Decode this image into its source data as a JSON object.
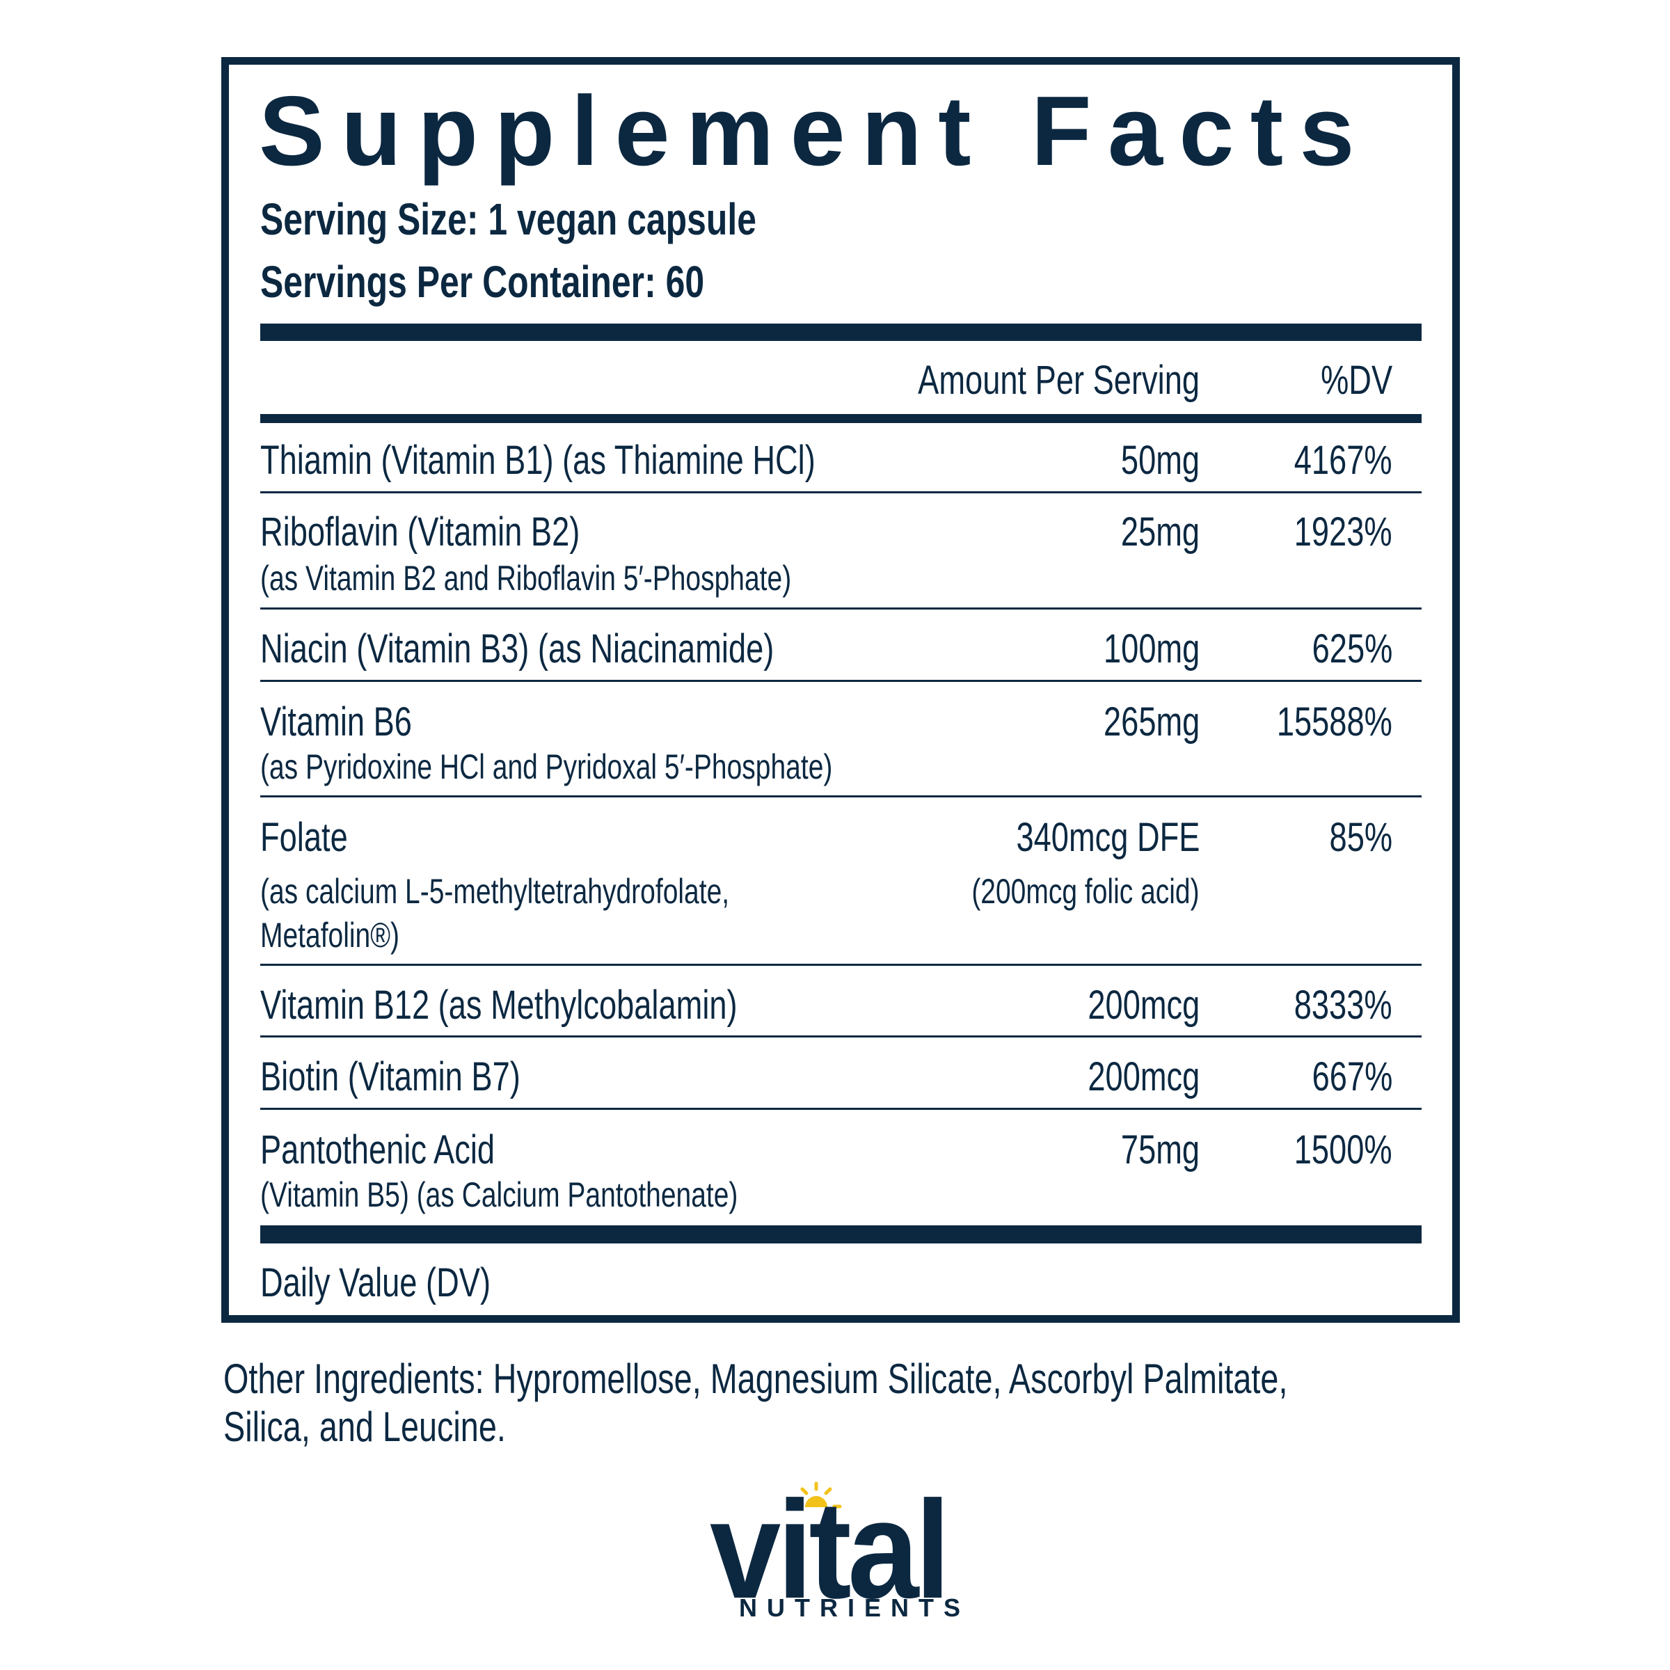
{
  "title": "Supplement Facts",
  "serving_size": "Serving Size: 1 vegan capsule",
  "servings_per_container": "Servings Per Container: 60",
  "header": {
    "amount": "Amount Per Serving",
    "dv": "%DV"
  },
  "rows": [
    {
      "name": "Thiamin (Vitamin B1) (as Thiamine HCl)",
      "amount": "50mg",
      "dv": "4167%"
    },
    {
      "name": "Riboflavin (Vitamin B2)",
      "sub": "(as Vitamin B2 and Riboflavin 5′-Phosphate)",
      "amount": "25mg",
      "dv": "1923%"
    },
    {
      "name": "Niacin (Vitamin B3) (as Niacinamide)",
      "amount": "100mg",
      "dv": "625%"
    },
    {
      "name": "Vitamin B6",
      "sub": "(as Pyridoxine HCl and Pyridoxal 5′-Phosphate)",
      "amount": "265mg",
      "dv": "15588%"
    },
    {
      "name": "Folate",
      "sub": "(as calcium L-5-methyltetrahydrofolate,",
      "sub2": "Metafolin®)",
      "amount": "340mcg DFE",
      "amount_sub": "(200mcg folic acid)",
      "dv": "85%"
    },
    {
      "name": "Vitamin B12 (as Methylcobalamin)",
      "amount": "200mcg",
      "dv": "8333%"
    },
    {
      "name": "Biotin (Vitamin B7)",
      "amount": "200mcg",
      "dv": "667%"
    },
    {
      "name": "Pantothenic Acid",
      "sub": "(Vitamin B5) (as Calcium Pantothenate)",
      "amount": "75mg",
      "dv": "1500%"
    }
  ],
  "footnote": "Daily Value (DV)",
  "other_ingredients": {
    "line1": "Other Ingredients: Hypromellose, Magnesium Silicate, Ascorbyl Palmitate,",
    "line2": "Silica, and Leucine."
  },
  "logo": {
    "word": "vital",
    "sub": "NUTRIENTS"
  },
  "colors": {
    "text": "#0c2841",
    "sun": "#f2c21b"
  }
}
